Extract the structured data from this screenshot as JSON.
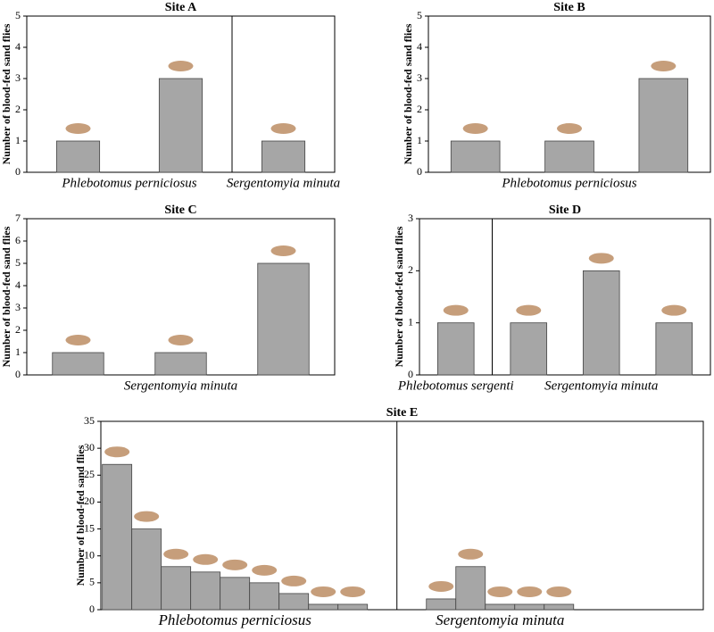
{
  "chart_data": [
    {
      "type": "bar",
      "title": "Site A",
      "y_label": "Number of blood-fed sand flies",
      "color": "#a6a6a6",
      "categories": [
        null,
        null,
        null
      ],
      "series": [
        {
          "name": "Phlebotomus perniciosus",
          "values": [
            1,
            3,
            null
          ]
        },
        {
          "name": "Sergentomyia minuta",
          "values": [
            null,
            null,
            1
          ]
        }
      ],
      "ylim": [
        0,
        5
      ],
      "yticks": [
        0,
        1,
        2,
        3,
        4,
        5
      ]
    },
    {
      "type": "bar",
      "title": "Site B",
      "y_label": "Number of blood-fed sand flies",
      "color": "#a6a6a6",
      "categories": [
        null,
        null,
        null
      ],
      "series": [
        {
          "name": "Phlebotomus perniciosus",
          "values": [
            1,
            1,
            3
          ]
        }
      ],
      "ylim": [
        0,
        5
      ],
      "yticks": [
        0,
        1,
        2,
        3,
        4,
        5
      ]
    },
    {
      "type": "bar",
      "title": "Site C",
      "y_label": "Number of blood-fed sand flies",
      "color": "#a6a6a6",
      "categories": [
        null,
        null,
        null
      ],
      "series": [
        {
          "name": "Sergentomyia minuta",
          "values": [
            1,
            1,
            5
          ]
        }
      ],
      "ylim": [
        0,
        7
      ],
      "yticks": [
        0,
        1,
        2,
        3,
        4,
        5,
        6,
        7
      ]
    },
    {
      "type": "bar",
      "title": "Site D",
      "y_label": "Number of blood-fed sand flies",
      "color": "#a6a6a6",
      "categories": [
        null,
        null,
        null,
        null
      ],
      "series": [
        {
          "name": "Phlebotomus sergenti",
          "values": [
            1,
            null,
            null,
            null
          ]
        },
        {
          "name": "Sergentomyia minuta",
          "values": [
            null,
            1,
            2,
            1
          ]
        }
      ],
      "ylim": [
        0,
        3
      ],
      "yticks": [
        0,
        1,
        2,
        3
      ]
    },
    {
      "type": "bar",
      "title": "Site E",
      "y_label": "Number of blood-fed sand flies",
      "color": "#a6a6a6",
      "categories": [
        null,
        null,
        null,
        null,
        null,
        null,
        null,
        null,
        null,
        null,
        null,
        null,
        null,
        null
      ],
      "series": [
        {
          "name": "Phlebotomus perniciosus",
          "values": [
            27,
            15,
            8,
            7,
            6,
            5,
            3,
            1,
            1,
            null,
            null,
            null,
            null,
            null
          ]
        },
        {
          "name": "Sergentomyia minuta",
          "values": [
            null,
            null,
            null,
            null,
            null,
            null,
            null,
            null,
            null,
            2,
            8,
            1,
            1,
            1
          ]
        }
      ],
      "ylim": [
        0,
        35
      ],
      "yticks": [
        0,
        5,
        10,
        15,
        20,
        25,
        30,
        35
      ]
    }
  ]
}
